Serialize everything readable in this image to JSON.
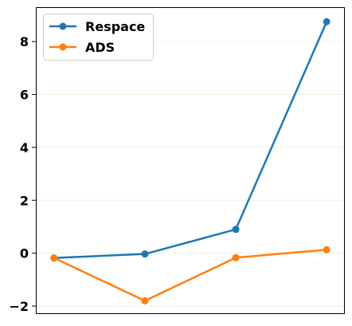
{
  "chart_data": {
    "type": "line",
    "x": [
      1,
      2,
      3,
      4
    ],
    "series": [
      {
        "name": "Respace",
        "color": "#1f77b4",
        "values": [
          -0.18,
          -0.03,
          0.9,
          8.75
        ]
      },
      {
        "name": "ADS",
        "color": "#ff7f0e",
        "values": [
          -0.18,
          -1.8,
          -0.17,
          0.13
        ]
      }
    ],
    "xlim": [
      0.8,
      4.2
    ],
    "ylim": [
      -2.3,
      9.3
    ],
    "yticks": [
      -2,
      0,
      2,
      4,
      6,
      8
    ],
    "ytick_labels": [
      "−2",
      "0",
      "2",
      "4",
      "6",
      "8"
    ],
    "xticks_visible": false,
    "grid": "horizontal",
    "legend_position": "top-left",
    "marker": "circle",
    "title": "",
    "xlabel": "",
    "ylabel": ""
  }
}
